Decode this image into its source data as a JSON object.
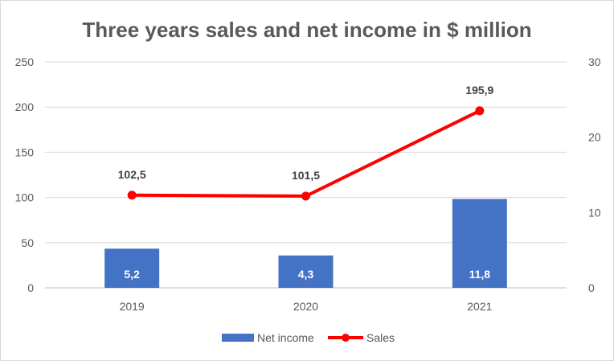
{
  "chart_data": {
    "type": "bar",
    "title": "Three years sales and net income in $ million",
    "categories": [
      "2019",
      "2020",
      "2021"
    ],
    "series": [
      {
        "name": "Net income",
        "type": "bar",
        "axis": "left",
        "values": [
          5.2,
          4.3,
          11.8
        ],
        "labels": [
          "5,2",
          "4,3",
          "11,8"
        ],
        "color": "#4472c4"
      },
      {
        "name": "Sales",
        "type": "line",
        "axis": "left",
        "values": [
          102.5,
          101.5,
          195.9
        ],
        "labels": [
          "102,5",
          "101,5",
          "195,9"
        ],
        "color": "#ff0000"
      }
    ],
    "y_left": {
      "ylim": [
        0,
        250
      ],
      "ticks": [
        "0",
        "50",
        "100",
        "150",
        "200",
        "250"
      ]
    },
    "y_right": {
      "ylim": [
        0,
        30
      ],
      "ticks": [
        "0",
        "10",
        "20",
        "30"
      ]
    },
    "grid": true,
    "legend": "bottom",
    "bar_scale_note": "bars drawn against right axis"
  }
}
